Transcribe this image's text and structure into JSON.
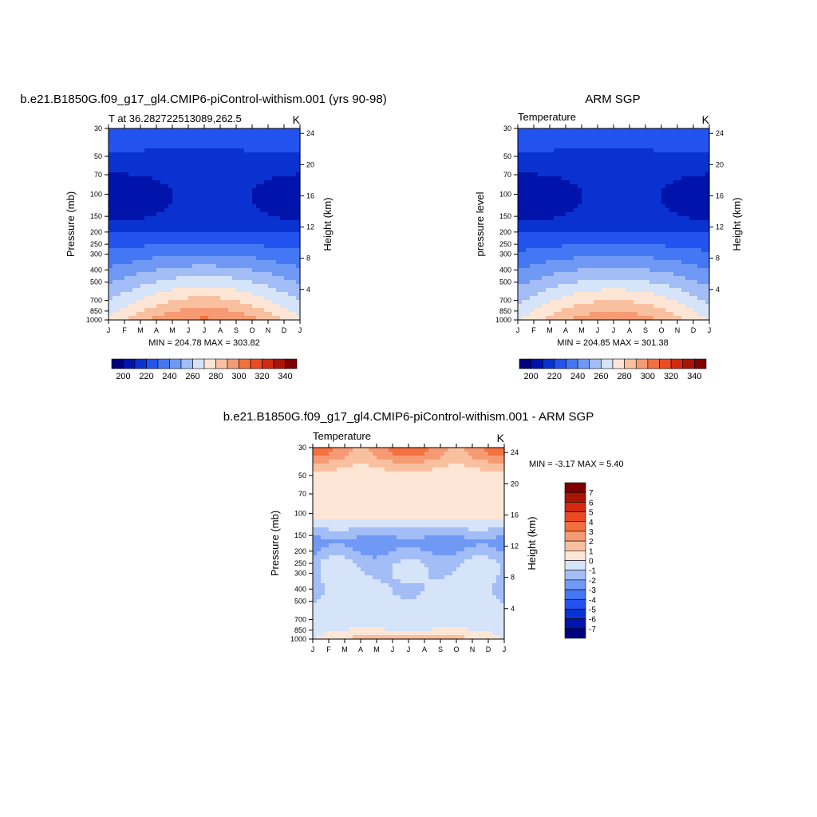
{
  "colors": {
    "abs_palette": [
      "#00007f",
      "#0014ab",
      "#0a32d1",
      "#2353ef",
      "#4477f4",
      "#7099f5",
      "#a3bdf7",
      "#d5e4f9",
      "#fde6d6",
      "#f9c0a0",
      "#f59a72",
      "#f3703f",
      "#ec4a22",
      "#d22a10",
      "#a81505",
      "#7f0000"
    ],
    "diff_palette": [
      "#00007f",
      "#0014ab",
      "#0a32d1",
      "#2353ef",
      "#4477f4",
      "#7099f5",
      "#a3bdf7",
      "#d5e4f9",
      "#fde6d6",
      "#f9c0a0",
      "#f59a72",
      "#f3703f",
      "#ec4a22",
      "#d22a10",
      "#a81505",
      "#7f0000"
    ]
  },
  "chart_data": [
    {
      "type": "heatmap",
      "title": "b.e21.B1850G.f09_g17_gl4.CMIP6-piControl-withism.001 (yrs 90-98)",
      "left_label": "T at 36.282722513089,262.5",
      "right_label": "K",
      "ylabel": "Pressure (mb)",
      "ylabel_right": "Height (km)",
      "stats": "MIN = 204.78 MAX = 303.82",
      "x_ticks": [
        "J",
        "F",
        "M",
        "A",
        "M",
        "J",
        "J",
        "A",
        "S",
        "O",
        "N",
        "D",
        "J"
      ],
      "y_ticks": [
        30,
        50,
        70,
        100,
        150,
        200,
        250,
        300,
        400,
        500,
        700,
        850,
        1000
      ],
      "height_ticks": [
        24,
        20,
        16,
        12,
        8,
        4
      ],
      "levels": [
        200,
        210,
        220,
        230,
        240,
        250,
        260,
        270,
        280,
        290,
        300,
        310,
        320,
        330,
        340
      ],
      "colorbar_labels": [
        "200",
        "220",
        "240",
        "260",
        "280",
        "300",
        "320",
        "340"
      ],
      "field": "model"
    },
    {
      "type": "heatmap",
      "title": "ARM SGP",
      "left_label": "Temperature",
      "right_label": "K",
      "ylabel": "pressure level",
      "ylabel_right": "Height (km)",
      "stats": "MIN = 204.85 MAX = 301.38",
      "x_ticks": [
        "J",
        "F",
        "M",
        "A",
        "M",
        "J",
        "J",
        "A",
        "S",
        "O",
        "N",
        "D",
        "J"
      ],
      "y_ticks": [
        30,
        50,
        70,
        100,
        150,
        200,
        250,
        300,
        400,
        500,
        700,
        850,
        1000
      ],
      "height_ticks": [
        24,
        20,
        16,
        12,
        8,
        4
      ],
      "levels": [
        200,
        210,
        220,
        230,
        240,
        250,
        260,
        270,
        280,
        290,
        300,
        310,
        320,
        330,
        340
      ],
      "colorbar_labels": [
        "200",
        "220",
        "240",
        "260",
        "280",
        "300",
        "320",
        "340"
      ],
      "field": "obs"
    },
    {
      "type": "heatmap",
      "title": "b.e21.B1850G.f09_g17_gl4.CMIP6-piControl-withism.001 - ARM SGP",
      "left_label": "Temperature",
      "right_label": "K",
      "ylabel": "Pressure (mb)",
      "ylabel_right": "Height (km)",
      "stats": "MIN =  -3.17 MAX =   5.40",
      "x_ticks": [
        "J",
        "F",
        "M",
        "A",
        "M",
        "J",
        "J",
        "A",
        "S",
        "O",
        "N",
        "D",
        "J"
      ],
      "y_ticks": [
        30,
        50,
        70,
        100,
        150,
        200,
        250,
        300,
        400,
        500,
        700,
        850,
        1000
      ],
      "height_ticks": [
        24,
        20,
        16,
        12,
        8,
        4
      ],
      "levels": [
        -7,
        -6,
        -5,
        -4,
        -3,
        -2,
        -1,
        0,
        1,
        2,
        3,
        4,
        5,
        6,
        7
      ],
      "colorbar_labels": [
        "7",
        "6",
        "5",
        "4",
        "3",
        "2",
        "1",
        "0",
        "-1",
        "-2",
        "-3",
        "-4",
        "-5",
        "-6",
        "-7"
      ],
      "field": "diff"
    }
  ]
}
